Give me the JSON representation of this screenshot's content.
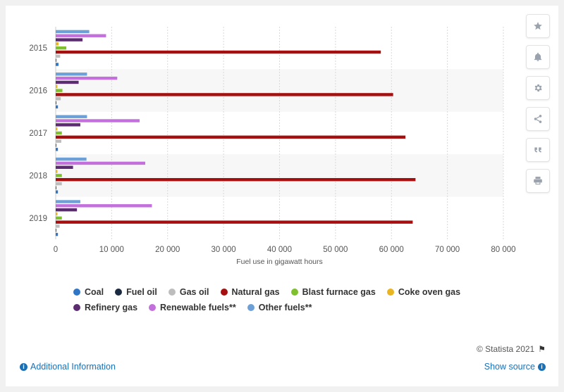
{
  "chart_data": {
    "type": "bar",
    "orientation": "horizontal",
    "categories": [
      "2015",
      "2016",
      "2017",
      "2018",
      "2019"
    ],
    "series": [
      {
        "name": "Other fuels**",
        "color": "#6ea0d8",
        "values": [
          6000,
          5600,
          5600,
          5500,
          4400
        ]
      },
      {
        "name": "Renewable fuels**",
        "color": "#c36fdc",
        "values": [
          9000,
          11000,
          15000,
          16000,
          17200
        ]
      },
      {
        "name": "Refinery gas",
        "color": "#5b2c6f",
        "values": [
          4800,
          4100,
          4400,
          3100,
          3800
        ]
      },
      {
        "name": "Coke oven gas",
        "color": "#e9b521",
        "values": [
          500,
          300,
          300,
          300,
          300
        ]
      },
      {
        "name": "Blast furnace gas",
        "color": "#7ec02e",
        "values": [
          1900,
          1200,
          1100,
          1100,
          1100
        ]
      },
      {
        "name": "Natural gas",
        "color": "#a50f0f",
        "values": [
          58100,
          60300,
          62500,
          64300,
          63800
        ]
      },
      {
        "name": "Gas oil",
        "color": "#bdbdbd",
        "values": [
          800,
          900,
          1000,
          1100,
          700
        ]
      },
      {
        "name": "Fuel oil",
        "color": "#1a2a40",
        "values": [
          100,
          100,
          100,
          100,
          100
        ]
      },
      {
        "name": "Coal",
        "color": "#2f76c6",
        "values": [
          500,
          400,
          400,
          400,
          400
        ]
      }
    ],
    "x_ticks": [
      "0",
      "10 000",
      "20 000",
      "30 000",
      "40 000",
      "50 000",
      "60 000",
      "70 000",
      "80 000"
    ],
    "xlim": [
      0,
      80000
    ],
    "xlabel": "Fuel use in gigawatt hours",
    "grid": true,
    "legend_position": "bottom"
  },
  "legend_rows": [
    [
      {
        "label": "Coal",
        "color": "#2f76c6"
      },
      {
        "label": "Fuel oil",
        "color": "#1a2a40"
      },
      {
        "label": "Gas oil",
        "color": "#bdbdbd"
      },
      {
        "label": "Natural gas",
        "color": "#a50f0f"
      },
      {
        "label": "Blast furnace gas",
        "color": "#7ec02e"
      },
      {
        "label": "Coke oven gas",
        "color": "#e9b521"
      }
    ],
    [
      {
        "label": "Refinery gas",
        "color": "#5b2c6f"
      },
      {
        "label": "Renewable fuels**",
        "color": "#c36fdc"
      },
      {
        "label": "Other fuels**",
        "color": "#6ea0d8"
      }
    ]
  ],
  "tools": [
    {
      "name": "star-icon"
    },
    {
      "name": "bell-icon"
    },
    {
      "name": "gear-icon"
    },
    {
      "name": "share-icon"
    },
    {
      "name": "quote-icon"
    },
    {
      "name": "print-icon"
    }
  ],
  "footer": {
    "credit": "© Statista 2021",
    "additional_info": "Additional Information",
    "show_source": "Show source"
  }
}
